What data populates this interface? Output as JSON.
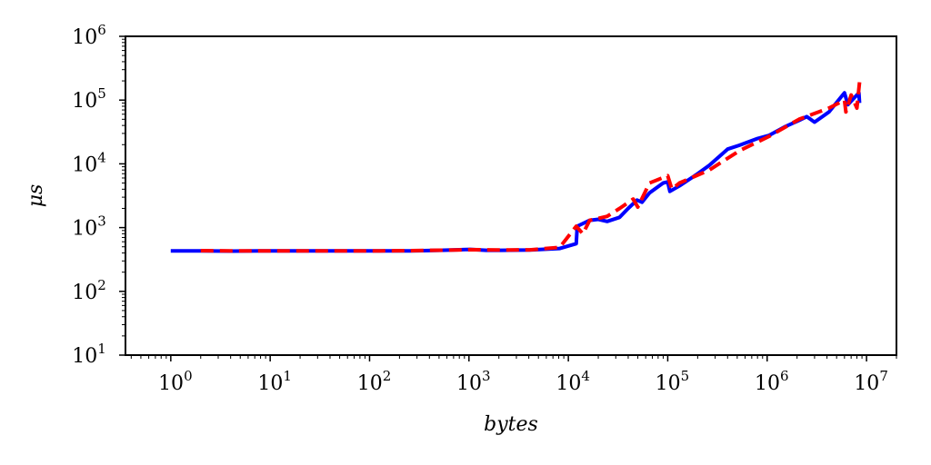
{
  "chart_data": {
    "type": "line",
    "title": "",
    "xlabel": "bytes",
    "ylabel": "μs",
    "xscale": "log",
    "yscale": "log",
    "xlim": [
      0.35,
      20000000
    ],
    "ylim": [
      10,
      1000000
    ],
    "xticks": [
      {
        "value": 1,
        "base": "10",
        "exp": "0"
      },
      {
        "value": 10,
        "base": "10",
        "exp": "1"
      },
      {
        "value": 100,
        "base": "10",
        "exp": "2"
      },
      {
        "value": 1000,
        "base": "10",
        "exp": "3"
      },
      {
        "value": 10000,
        "base": "10",
        "exp": "4"
      },
      {
        "value": 100000,
        "base": "10",
        "exp": "5"
      },
      {
        "value": 1000000,
        "base": "10",
        "exp": "6"
      },
      {
        "value": 10000000,
        "base": "10",
        "exp": "7"
      }
    ],
    "yticks": [
      {
        "value": 10,
        "base": "10",
        "exp": "1"
      },
      {
        "value": 100,
        "base": "10",
        "exp": "2"
      },
      {
        "value": 1000,
        "base": "10",
        "exp": "3"
      },
      {
        "value": 10000,
        "base": "10",
        "exp": "4"
      },
      {
        "value": 100000,
        "base": "10",
        "exp": "5"
      },
      {
        "value": 1000000,
        "base": "10",
        "exp": "6"
      }
    ],
    "grid": false,
    "legend": "none",
    "series": [
      {
        "color": "#0000ff",
        "style": "solid",
        "points": [
          [
            1,
            430
          ],
          [
            2,
            430
          ],
          [
            4,
            428
          ],
          [
            8,
            430
          ],
          [
            16,
            430
          ],
          [
            32,
            430
          ],
          [
            64,
            430
          ],
          [
            128,
            430
          ],
          [
            256,
            432
          ],
          [
            512,
            440
          ],
          [
            1024,
            455
          ],
          [
            1500,
            440
          ],
          [
            2048,
            440
          ],
          [
            4096,
            445
          ],
          [
            8192,
            470
          ],
          [
            12000,
            560
          ],
          [
            12288,
            1050
          ],
          [
            16384,
            1300
          ],
          [
            20000,
            1350
          ],
          [
            24576,
            1250
          ],
          [
            32768,
            1450
          ],
          [
            40000,
            2000
          ],
          [
            49152,
            2700
          ],
          [
            55000,
            2500
          ],
          [
            65536,
            3500
          ],
          [
            90000,
            5000
          ],
          [
            100000,
            5200
          ],
          [
            105000,
            3700
          ],
          [
            131072,
            4500
          ],
          [
            200000,
            7000
          ],
          [
            262144,
            9500
          ],
          [
            400000,
            17000
          ],
          [
            524288,
            19500
          ],
          [
            800000,
            25000
          ],
          [
            1048576,
            28000
          ],
          [
            1500000,
            38000
          ],
          [
            2097152,
            48000
          ],
          [
            2500000,
            55000
          ],
          [
            3000000,
            45000
          ],
          [
            4194304,
            65000
          ],
          [
            6000000,
            130000
          ],
          [
            6500000,
            85000
          ],
          [
            8388608,
            130000
          ],
          [
            8500000,
            90000
          ]
        ]
      },
      {
        "color": "#ff0000",
        "style": "dashed",
        "points": [
          [
            2,
            435
          ],
          [
            4,
            432
          ],
          [
            8,
            432
          ],
          [
            16,
            432
          ],
          [
            32,
            432
          ],
          [
            64,
            432
          ],
          [
            128,
            432
          ],
          [
            256,
            435
          ],
          [
            512,
            442
          ],
          [
            1024,
            450
          ],
          [
            2048,
            445
          ],
          [
            4096,
            448
          ],
          [
            8192,
            490
          ],
          [
            12000,
            1050
          ],
          [
            14000,
            800
          ],
          [
            16384,
            1300
          ],
          [
            24576,
            1500
          ],
          [
            32768,
            2000
          ],
          [
            45000,
            2800
          ],
          [
            50000,
            2100
          ],
          [
            65536,
            5000
          ],
          [
            100000,
            6500
          ],
          [
            110000,
            4000
          ],
          [
            131072,
            5000
          ],
          [
            262144,
            8000
          ],
          [
            524288,
            16000
          ],
          [
            1048576,
            27000
          ],
          [
            2097152,
            50000
          ],
          [
            4194304,
            75000
          ],
          [
            6000000,
            100000
          ],
          [
            6200000,
            65000
          ],
          [
            7000000,
            120000
          ],
          [
            8000000,
            75000
          ],
          [
            8500000,
            190000
          ]
        ]
      }
    ]
  }
}
